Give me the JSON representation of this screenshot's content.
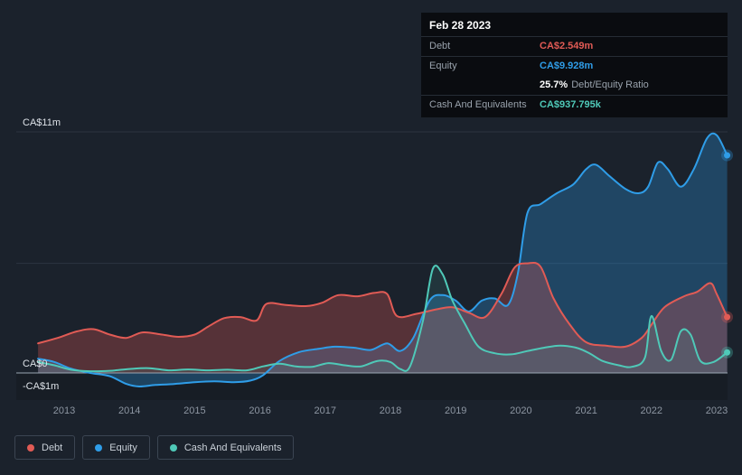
{
  "colors": {
    "background": "#1b222c",
    "debt": "#e15b55",
    "equity": "#2f9de8",
    "cash": "#4fc9b8"
  },
  "tooltip": {
    "date": "Feb 28 2023",
    "debt_label": "Debt",
    "debt_value": "CA$2.549m",
    "equity_label": "Equity",
    "equity_value": "CA$9.928m",
    "ratio_value": "25.7%",
    "ratio_label": "Debt/Equity Ratio",
    "cash_label": "Cash And Equivalents",
    "cash_value": "CA$937.795k"
  },
  "legend": {
    "items": [
      {
        "label": "Debt",
        "color": "#e15b55"
      },
      {
        "label": "Equity",
        "color": "#2f9de8"
      },
      {
        "label": "Cash And Equivalents",
        "color": "#4fc9b8"
      }
    ]
  },
  "chart_data": {
    "type": "area",
    "x_ticks": [
      "2013",
      "2014",
      "2015",
      "2016",
      "2017",
      "2018",
      "2019",
      "2020",
      "2021",
      "2022",
      "2023"
    ],
    "x_range": [
      2012.6,
      2023.16
    ],
    "y_axis": {
      "unit": "CA$ millions",
      "ylim": [
        -1.25,
        11.5
      ],
      "gridline_values": [
        11,
        5
      ],
      "labels": [
        {
          "value": 11,
          "text": "CA$11m"
        },
        {
          "value": 0,
          "text": "CA$0"
        },
        {
          "value": -1,
          "text": "-CA$1m"
        }
      ]
    },
    "series": [
      {
        "name": "Equity",
        "color": "#2f9de8",
        "fill": "rgba(47,157,232,0.30)",
        "points": [
          [
            2012.6,
            0.65
          ],
          [
            2012.85,
            0.5
          ],
          [
            2013.1,
            0.2
          ],
          [
            2013.4,
            0
          ],
          [
            2013.7,
            -0.15
          ],
          [
            2013.95,
            -0.5
          ],
          [
            2014.15,
            -0.62
          ],
          [
            2014.4,
            -0.55
          ],
          [
            2014.7,
            -0.5
          ],
          [
            2015,
            -0.42
          ],
          [
            2015.3,
            -0.38
          ],
          [
            2015.6,
            -0.42
          ],
          [
            2015.85,
            -0.35
          ],
          [
            2016.05,
            -0.1
          ],
          [
            2016.3,
            0.55
          ],
          [
            2016.6,
            0.95
          ],
          [
            2016.9,
            1.1
          ],
          [
            2017.15,
            1.2
          ],
          [
            2017.45,
            1.15
          ],
          [
            2017.7,
            1.05
          ],
          [
            2017.95,
            1.35
          ],
          [
            2018.15,
            1.0
          ],
          [
            2018.35,
            1.6
          ],
          [
            2018.6,
            3.3
          ],
          [
            2018.8,
            3.55
          ],
          [
            2019,
            3.3
          ],
          [
            2019.2,
            2.8
          ],
          [
            2019.4,
            3.3
          ],
          [
            2019.6,
            3.4
          ],
          [
            2019.8,
            3.1
          ],
          [
            2019.95,
            4.5
          ],
          [
            2020.1,
            7.3
          ],
          [
            2020.3,
            7.7
          ],
          [
            2020.55,
            8.2
          ],
          [
            2020.8,
            8.6
          ],
          [
            2021,
            9.3
          ],
          [
            2021.15,
            9.5
          ],
          [
            2021.35,
            9.0
          ],
          [
            2021.6,
            8.4
          ],
          [
            2021.8,
            8.2
          ],
          [
            2021.95,
            8.5
          ],
          [
            2022.1,
            9.6
          ],
          [
            2022.25,
            9.3
          ],
          [
            2022.45,
            8.5
          ],
          [
            2022.65,
            9.3
          ],
          [
            2022.85,
            10.7
          ],
          [
            2023,
            10.85
          ],
          [
            2023.16,
            9.928
          ]
        ]
      },
      {
        "name": "Debt",
        "color": "#e15b55",
        "fill": "rgba(225,91,85,0.30)",
        "points": [
          [
            2012.6,
            1.35
          ],
          [
            2012.9,
            1.6
          ],
          [
            2013.2,
            1.9
          ],
          [
            2013.45,
            2.0
          ],
          [
            2013.7,
            1.75
          ],
          [
            2013.95,
            1.6
          ],
          [
            2014.2,
            1.85
          ],
          [
            2014.5,
            1.75
          ],
          [
            2014.75,
            1.65
          ],
          [
            2015,
            1.75
          ],
          [
            2015.2,
            2.1
          ],
          [
            2015.45,
            2.5
          ],
          [
            2015.7,
            2.55
          ],
          [
            2015.95,
            2.4
          ],
          [
            2016.1,
            3.15
          ],
          [
            2016.4,
            3.1
          ],
          [
            2016.7,
            3.05
          ],
          [
            2016.95,
            3.2
          ],
          [
            2017.2,
            3.55
          ],
          [
            2017.5,
            3.5
          ],
          [
            2017.75,
            3.65
          ],
          [
            2017.95,
            3.6
          ],
          [
            2018.1,
            2.6
          ],
          [
            2018.4,
            2.7
          ],
          [
            2018.7,
            2.9
          ],
          [
            2018.95,
            3.0
          ],
          [
            2019.2,
            2.75
          ],
          [
            2019.45,
            2.55
          ],
          [
            2019.7,
            3.6
          ],
          [
            2019.9,
            4.8
          ],
          [
            2020.1,
            5.0
          ],
          [
            2020.3,
            4.85
          ],
          [
            2020.5,
            3.4
          ],
          [
            2020.75,
            2.2
          ],
          [
            2021,
            1.4
          ],
          [
            2021.3,
            1.25
          ],
          [
            2021.6,
            1.2
          ],
          [
            2021.85,
            1.6
          ],
          [
            2022,
            2.2
          ],
          [
            2022.2,
            3.0
          ],
          [
            2022.5,
            3.5
          ],
          [
            2022.7,
            3.7
          ],
          [
            2022.9,
            4.1
          ],
          [
            2023,
            3.6
          ],
          [
            2023.16,
            2.549
          ]
        ]
      },
      {
        "name": "Cash And Equivalents",
        "color": "#4fc9b8",
        "fill": "rgba(79,201,184,0.12)",
        "points": [
          [
            2012.6,
            0.5
          ],
          [
            2012.85,
            0.35
          ],
          [
            2013.1,
            0.15
          ],
          [
            2013.4,
            0.08
          ],
          [
            2013.7,
            0.1
          ],
          [
            2014,
            0.18
          ],
          [
            2014.3,
            0.22
          ],
          [
            2014.6,
            0.12
          ],
          [
            2014.9,
            0.16
          ],
          [
            2015.2,
            0.12
          ],
          [
            2015.5,
            0.15
          ],
          [
            2015.8,
            0.12
          ],
          [
            2016.05,
            0.3
          ],
          [
            2016.3,
            0.42
          ],
          [
            2016.55,
            0.3
          ],
          [
            2016.8,
            0.28
          ],
          [
            2017.05,
            0.45
          ],
          [
            2017.3,
            0.35
          ],
          [
            2017.55,
            0.3
          ],
          [
            2017.8,
            0.55
          ],
          [
            2018,
            0.5
          ],
          [
            2018.15,
            0.18
          ],
          [
            2018.3,
            0.3
          ],
          [
            2018.5,
            2.4
          ],
          [
            2018.65,
            4.75
          ],
          [
            2018.8,
            4.5
          ],
          [
            2018.95,
            3.3
          ],
          [
            2019.15,
            2.2
          ],
          [
            2019.35,
            1.2
          ],
          [
            2019.6,
            0.9
          ],
          [
            2019.85,
            0.85
          ],
          [
            2020.1,
            1.0
          ],
          [
            2020.35,
            1.15
          ],
          [
            2020.6,
            1.25
          ],
          [
            2020.85,
            1.15
          ],
          [
            2021.05,
            0.9
          ],
          [
            2021.25,
            0.55
          ],
          [
            2021.5,
            0.35
          ],
          [
            2021.7,
            0.28
          ],
          [
            2021.9,
            0.7
          ],
          [
            2022,
            2.6
          ],
          [
            2022.15,
            1.0
          ],
          [
            2022.3,
            0.6
          ],
          [
            2022.45,
            1.9
          ],
          [
            2022.6,
            1.75
          ],
          [
            2022.75,
            0.55
          ],
          [
            2022.95,
            0.5
          ],
          [
            2023.16,
            0.938
          ]
        ]
      }
    ]
  }
}
